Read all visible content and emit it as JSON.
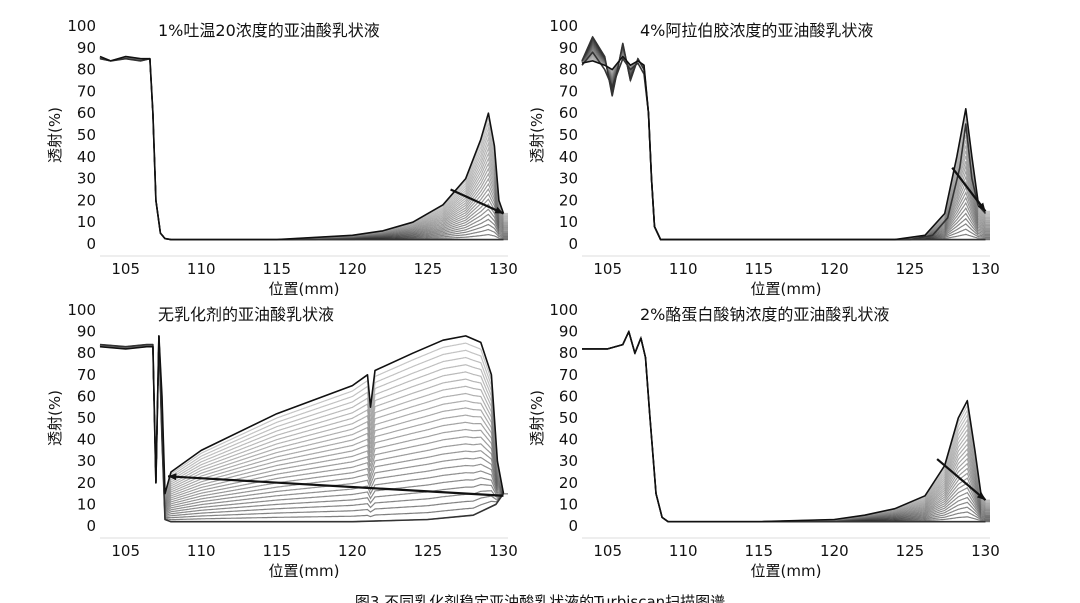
{
  "figure": {
    "caption": "图3  不同乳化剂稳定亚油酸乳状液的Turbiscan扫描图谱"
  },
  "colors": {
    "curve_dark": "#111111",
    "curve_light": "#c8c8c8",
    "axis": "#222222",
    "text": "#111111",
    "background": "#ffffff"
  },
  "chart_data": [
    {
      "type": "line",
      "title": "1%吐温20浓度的亚油酸乳状液",
      "xlabel": "位置(mm)",
      "ylabel": "透射(%)",
      "xlim": [
        103.3,
        130.3
      ],
      "ylim": [
        0,
        100
      ],
      "xticks": [
        105,
        110,
        115,
        120,
        125,
        130
      ],
      "yticks": [
        0,
        10,
        20,
        30,
        40,
        50,
        60,
        70,
        80,
        90,
        100
      ],
      "series": [
        {
          "name": "first_scan",
          "x": [
            103.3,
            104,
            105,
            106,
            106.6,
            106.8,
            107.0,
            107.3,
            107.6,
            108,
            110,
            115,
            120,
            125,
            127,
            128,
            129,
            129.6,
            130
          ],
          "y": [
            85,
            84,
            85,
            84,
            85,
            60,
            20,
            5,
            2.5,
            2,
            2,
            2,
            2,
            2,
            2,
            2,
            2,
            2,
            2
          ]
        },
        {
          "name": "last_scan",
          "x": [
            103.3,
            104,
            105,
            106,
            106.6,
            106.8,
            107.0,
            107.3,
            107.6,
            108,
            110,
            115,
            120,
            122,
            124,
            126,
            127.5,
            128.5,
            129,
            129.4,
            129.7,
            130
          ],
          "y": [
            86,
            84,
            86,
            85,
            85,
            60,
            20,
            5,
            2.5,
            2,
            2,
            2,
            4,
            6,
            10,
            18,
            30,
            48,
            60,
            45,
            20,
            14
          ]
        }
      ],
      "trend_arrow": {
        "from": [
          126.5,
          25
        ],
        "to": [
          130,
          14
        ]
      }
    },
    {
      "type": "line",
      "title": "4%阿拉伯胶浓度的亚油酸乳状液",
      "xlabel": "位置(mm)",
      "ylabel": "透射(%)",
      "xlim": [
        103.3,
        130.3
      ],
      "ylim": [
        0,
        100
      ],
      "xticks": [
        105,
        110,
        115,
        120,
        125,
        130
      ],
      "yticks": [
        0,
        10,
        20,
        30,
        40,
        50,
        60,
        70,
        80,
        90,
        100
      ],
      "series": [
        {
          "name": "first_scan",
          "x": [
            103.3,
            104,
            104.8,
            105.3,
            106,
            106.5,
            107,
            107.4,
            107.7,
            107.9,
            108.1,
            108.5,
            110,
            115,
            120,
            125,
            127,
            128,
            129,
            130
          ],
          "y": [
            84,
            95,
            86,
            68,
            92,
            75,
            85,
            80,
            60,
            30,
            8,
            2,
            2,
            2,
            2,
            2,
            2,
            2,
            2,
            2
          ]
        },
        {
          "name": "mid_scan",
          "x": [
            103.3,
            104,
            104.8,
            105.3,
            106,
            106.5,
            107,
            107.4,
            107.7,
            107.9,
            108.1,
            108.5,
            110,
            115,
            120,
            125,
            126.5,
            127.5,
            128.3,
            128.7,
            129.1,
            129.5,
            130
          ],
          "y": [
            82,
            88,
            80,
            72,
            85,
            80,
            83,
            78,
            60,
            30,
            8,
            2,
            2,
            2,
            2,
            2,
            4,
            12,
            35,
            55,
            30,
            18,
            14
          ]
        },
        {
          "name": "last_scan",
          "x": [
            103.3,
            104,
            104.8,
            105.3,
            106,
            106.5,
            107,
            107.4,
            107.7,
            107.9,
            108.1,
            108.5,
            110,
            115,
            120,
            124,
            126,
            127.3,
            128.1,
            128.7,
            129.1,
            129.5,
            130
          ],
          "y": [
            83,
            84,
            82,
            80,
            86,
            82,
            84,
            82,
            60,
            30,
            8,
            2,
            2,
            2,
            2,
            2,
            4,
            14,
            40,
            62,
            40,
            20,
            15
          ]
        }
      ],
      "trend_arrow": {
        "from": [
          127.8,
          35
        ],
        "to": [
          130,
          15
        ]
      }
    },
    {
      "type": "line",
      "title": "无乳化剂的亚油酸乳状液",
      "xlabel": "位置(mm)",
      "ylabel": "透射(%)",
      "xlim": [
        103.3,
        130.3
      ],
      "ylim": [
        0,
        100
      ],
      "xticks": [
        105,
        110,
        115,
        120,
        125,
        130
      ],
      "yticks": [
        0,
        10,
        20,
        30,
        40,
        50,
        60,
        70,
        80,
        90,
        100
      ],
      "series": [
        {
          "name": "first_scan",
          "x": [
            103.3,
            105,
            106.4,
            106.8,
            107.0,
            107.2,
            107.4,
            107.6,
            108,
            110,
            115,
            120,
            125,
            128,
            129.5,
            130
          ],
          "y": [
            84,
            83,
            84,
            84,
            20,
            88,
            40,
            3,
            2,
            2,
            2,
            2,
            3,
            5,
            10,
            15
          ]
        },
        {
          "name": "last_scan",
          "x": [
            103.3,
            105,
            106.4,
            106.8,
            107.0,
            107.2,
            107.4,
            107.6,
            108,
            110,
            115,
            120,
            121,
            121.2,
            121.5,
            124,
            126,
            127.5,
            128.5,
            129.2,
            129.6,
            130
          ],
          "y": [
            83,
            82,
            83,
            83,
            20,
            88,
            60,
            15,
            25,
            35,
            52,
            65,
            70,
            55,
            72,
            80,
            86,
            88,
            85,
            70,
            30,
            15
          ]
        }
      ],
      "trend_arrow": {
        "from": [
          130,
          14
        ],
        "to": [
          107.8,
          23
        ]
      }
    },
    {
      "type": "line",
      "title": "2%酪蛋白酸钠浓度的亚油酸乳状液",
      "xlabel": "位置(mm)",
      "ylabel": "透射(%)",
      "xlim": [
        103.3,
        130.3
      ],
      "ylim": [
        0,
        100
      ],
      "xticks": [
        105,
        110,
        115,
        120,
        125,
        130
      ],
      "yticks": [
        0,
        10,
        20,
        30,
        40,
        50,
        60,
        70,
        80,
        90,
        100
      ],
      "series": [
        {
          "name": "first_scan",
          "x": [
            103.3,
            105,
            106,
            106.4,
            106.8,
            107.2,
            107.5,
            107.8,
            108.2,
            108.6,
            109,
            110,
            115,
            120,
            125,
            127,
            128,
            129,
            130
          ],
          "y": [
            82,
            82,
            84,
            90,
            80,
            87,
            78,
            50,
            15,
            4,
            2,
            2,
            2,
            2,
            2,
            2,
            2,
            2,
            2
          ]
        },
        {
          "name": "last_scan",
          "x": [
            103.3,
            105,
            106,
            106.4,
            106.8,
            107.2,
            107.5,
            107.8,
            108.2,
            108.6,
            109,
            110,
            115,
            120,
            122,
            124,
            126,
            127.3,
            128.2,
            128.8,
            129.3,
            129.7,
            130
          ],
          "y": [
            82,
            82,
            84,
            90,
            80,
            87,
            78,
            50,
            15,
            4,
            2,
            2,
            2,
            3,
            5,
            8,
            14,
            28,
            50,
            58,
            35,
            15,
            12
          ]
        }
      ],
      "trend_arrow": {
        "from": [
          126.8,
          31
        ],
        "to": [
          130,
          12
        ]
      }
    }
  ]
}
